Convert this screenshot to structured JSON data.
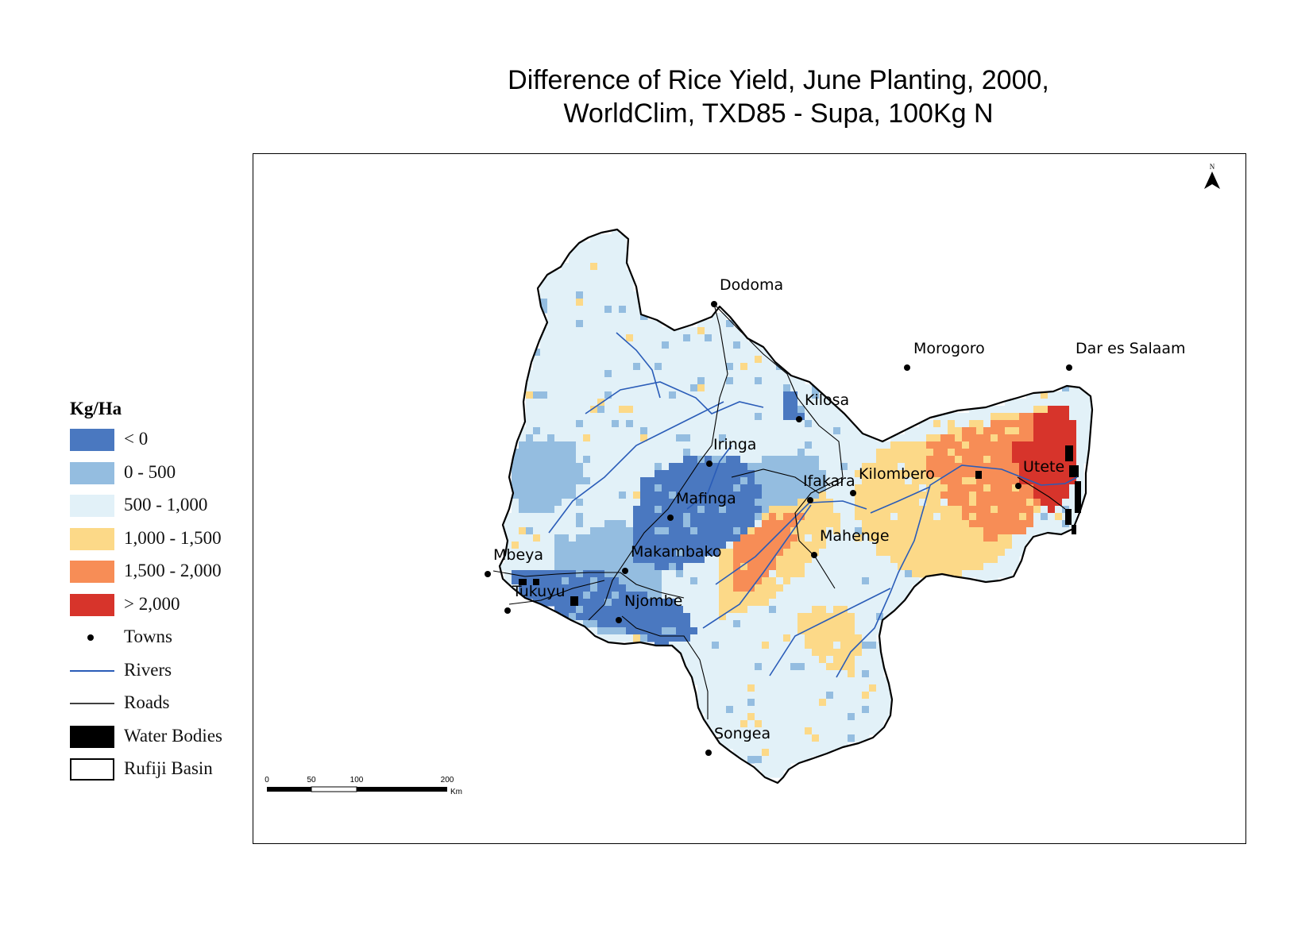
{
  "title": {
    "line1": "Difference of Rice Yield, June Planting, 2000,",
    "line2": "WorldClim, TXD85 - Supa, 100Kg N"
  },
  "legend": {
    "title": "Kg/Ha",
    "classes": [
      {
        "label": "< 0",
        "color": "#4a78c0"
      },
      {
        "label": "0 - 500",
        "color": "#94bde0"
      },
      {
        "label": "500 - 1,000",
        "color": "#e2f1f8"
      },
      {
        "label": "1,000 - 1,500",
        "color": "#fcd988"
      },
      {
        "label": "1,500 - 2,000",
        "color": "#f78d56"
      },
      {
        "label": "> 2,000",
        "color": "#d7342b"
      }
    ],
    "towns": "Towns",
    "rivers": "Rivers",
    "roads": "Roads",
    "water_bodies": "Water Bodies",
    "basin": "Rufiji Basin",
    "river_color": "#2a5cb8"
  },
  "towns": [
    "Dodoma",
    "Morogoro",
    "Dar es Salaam",
    "Kilosa",
    "Iringa",
    "Ifakara",
    "Kilombero",
    "Utete",
    "Mafinga",
    "Mahenge",
    "Mbeya",
    "Makambako",
    "Tukuyu",
    "Njombe",
    "Songea"
  ],
  "scale_bar": {
    "ticks": [
      "0",
      "50",
      "100",
      "200"
    ],
    "unit": "Km"
  },
  "north_arrow": {
    "label": "N",
    "icon": "north-arrow-icon"
  }
}
